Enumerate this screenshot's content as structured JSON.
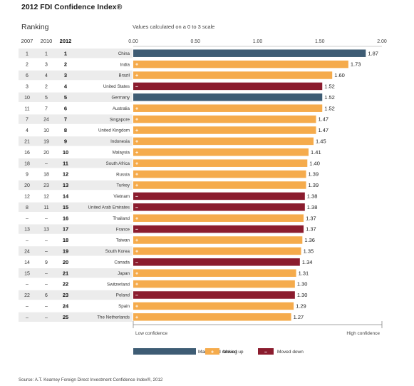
{
  "title": "2012 FDI Confidence Index®",
  "ranking_heading": "Ranking",
  "scale_note": "Values calculated on a 0 to 3 scale",
  "year_headers": [
    "2007",
    "2010",
    "2012"
  ],
  "low_label": "Low confidence",
  "high_label": "High confidence",
  "legend": [
    {
      "key": "maintained",
      "label": "Maintained ranking",
      "symbol": ""
    },
    {
      "key": "up",
      "label": "Moved up",
      "symbol": "+"
    },
    {
      "key": "down",
      "label": "Moved down",
      "symbol": "–"
    }
  ],
  "colors": {
    "maintained": "#3e5c74",
    "up": "#f5ab4c",
    "down": "#8b1c2e",
    "rowShade": "#ececec",
    "axis": "#999999"
  },
  "source": "Source: A.T. Kearney Foreign Direct Investment Confidence Index®, 2012",
  "chart_data": {
    "type": "bar",
    "orientation": "horizontal",
    "xlim": [
      0,
      2.0
    ],
    "xticks": [
      "0.00",
      "0.50",
      "1.00",
      "1.50",
      "2.00"
    ],
    "grid": false,
    "rows": [
      {
        "r2007": "1",
        "r2010": "1",
        "r2012": "1",
        "country": "China",
        "value": 1.87,
        "value_label": "1.87",
        "status": "maintained"
      },
      {
        "r2007": "2",
        "r2010": "3",
        "r2012": "2",
        "country": "India",
        "value": 1.73,
        "value_label": "1.73",
        "status": "up"
      },
      {
        "r2007": "6",
        "r2010": "4",
        "r2012": "3",
        "country": "Brazil",
        "value": 1.6,
        "value_label": "1.60",
        "status": "up"
      },
      {
        "r2007": "3",
        "r2010": "2",
        "r2012": "4",
        "country": "United States",
        "value": 1.52,
        "value_label": "1.52",
        "status": "down"
      },
      {
        "r2007": "10",
        "r2010": "5",
        "r2012": "5",
        "country": "Germany",
        "value": 1.52,
        "value_label": "1.52",
        "status": "maintained"
      },
      {
        "r2007": "11",
        "r2010": "7",
        "r2012": "6",
        "country": "Australia",
        "value": 1.52,
        "value_label": "1.52",
        "status": "up"
      },
      {
        "r2007": "7",
        "r2010": "24",
        "r2012": "7",
        "country": "Singapore",
        "value": 1.47,
        "value_label": "1.47",
        "status": "up"
      },
      {
        "r2007": "4",
        "r2010": "10",
        "r2012": "8",
        "country": "United Kingdom",
        "value": 1.47,
        "value_label": "1.47",
        "status": "up"
      },
      {
        "r2007": "21",
        "r2010": "19",
        "r2012": "9",
        "country": "Indonesia",
        "value": 1.45,
        "value_label": "1.45",
        "status": "up"
      },
      {
        "r2007": "16",
        "r2010": "20",
        "r2012": "10",
        "country": "Malaysia",
        "value": 1.41,
        "value_label": "1.41",
        "status": "up"
      },
      {
        "r2007": "18",
        "r2010": "–",
        "r2012": "11",
        "country": "South Africa",
        "value": 1.4,
        "value_label": "1.40",
        "status": "up"
      },
      {
        "r2007": "9",
        "r2010": "18",
        "r2012": "12",
        "country": "Russia",
        "value": 1.39,
        "value_label": "1.39",
        "status": "up"
      },
      {
        "r2007": "20",
        "r2010": "23",
        "r2012": "13",
        "country": "Turkey",
        "value": 1.39,
        "value_label": "1.39",
        "status": "up"
      },
      {
        "r2007": "12",
        "r2010": "12",
        "r2012": "14",
        "country": "Vietnam",
        "value": 1.38,
        "value_label": "1.38",
        "status": "down"
      },
      {
        "r2007": "8",
        "r2010": "11",
        "r2012": "15",
        "country": "United Arab Emirates",
        "value": 1.38,
        "value_label": "1.38",
        "status": "down"
      },
      {
        "r2007": "–",
        "r2010": "–",
        "r2012": "16",
        "country": "Thailand",
        "value": 1.37,
        "value_label": "1.37",
        "status": "up"
      },
      {
        "r2007": "13",
        "r2010": "13",
        "r2012": "17",
        "country": "France",
        "value": 1.37,
        "value_label": "1.37",
        "status": "down"
      },
      {
        "r2007": "–",
        "r2010": "–",
        "r2012": "18",
        "country": "Taiwan",
        "value": 1.36,
        "value_label": "1.36",
        "status": "up"
      },
      {
        "r2007": "24",
        "r2010": "–",
        "r2012": "19",
        "country": "South Korea",
        "value": 1.35,
        "value_label": "1.35",
        "status": "up"
      },
      {
        "r2007": "14",
        "r2010": "9",
        "r2012": "20",
        "country": "Canada",
        "value": 1.34,
        "value_label": "1.34",
        "status": "down"
      },
      {
        "r2007": "15",
        "r2010": "–",
        "r2012": "21",
        "country": "Japan",
        "value": 1.31,
        "value_label": "1.31",
        "status": "up"
      },
      {
        "r2007": "–",
        "r2010": "–",
        "r2012": "22",
        "country": "Switzerland",
        "value": 1.3,
        "value_label": "1.30",
        "status": "up"
      },
      {
        "r2007": "22",
        "r2010": "6",
        "r2012": "23",
        "country": "Poland",
        "value": 1.3,
        "value_label": "1.30",
        "status": "down"
      },
      {
        "r2007": "–",
        "r2010": "–",
        "r2012": "24",
        "country": "Spain",
        "value": 1.29,
        "value_label": "1.29",
        "status": "up"
      },
      {
        "r2007": "–",
        "r2010": "–",
        "r2012": "25",
        "country": "The Netherlands",
        "value": 1.27,
        "value_label": "1.27",
        "status": "up"
      }
    ]
  }
}
